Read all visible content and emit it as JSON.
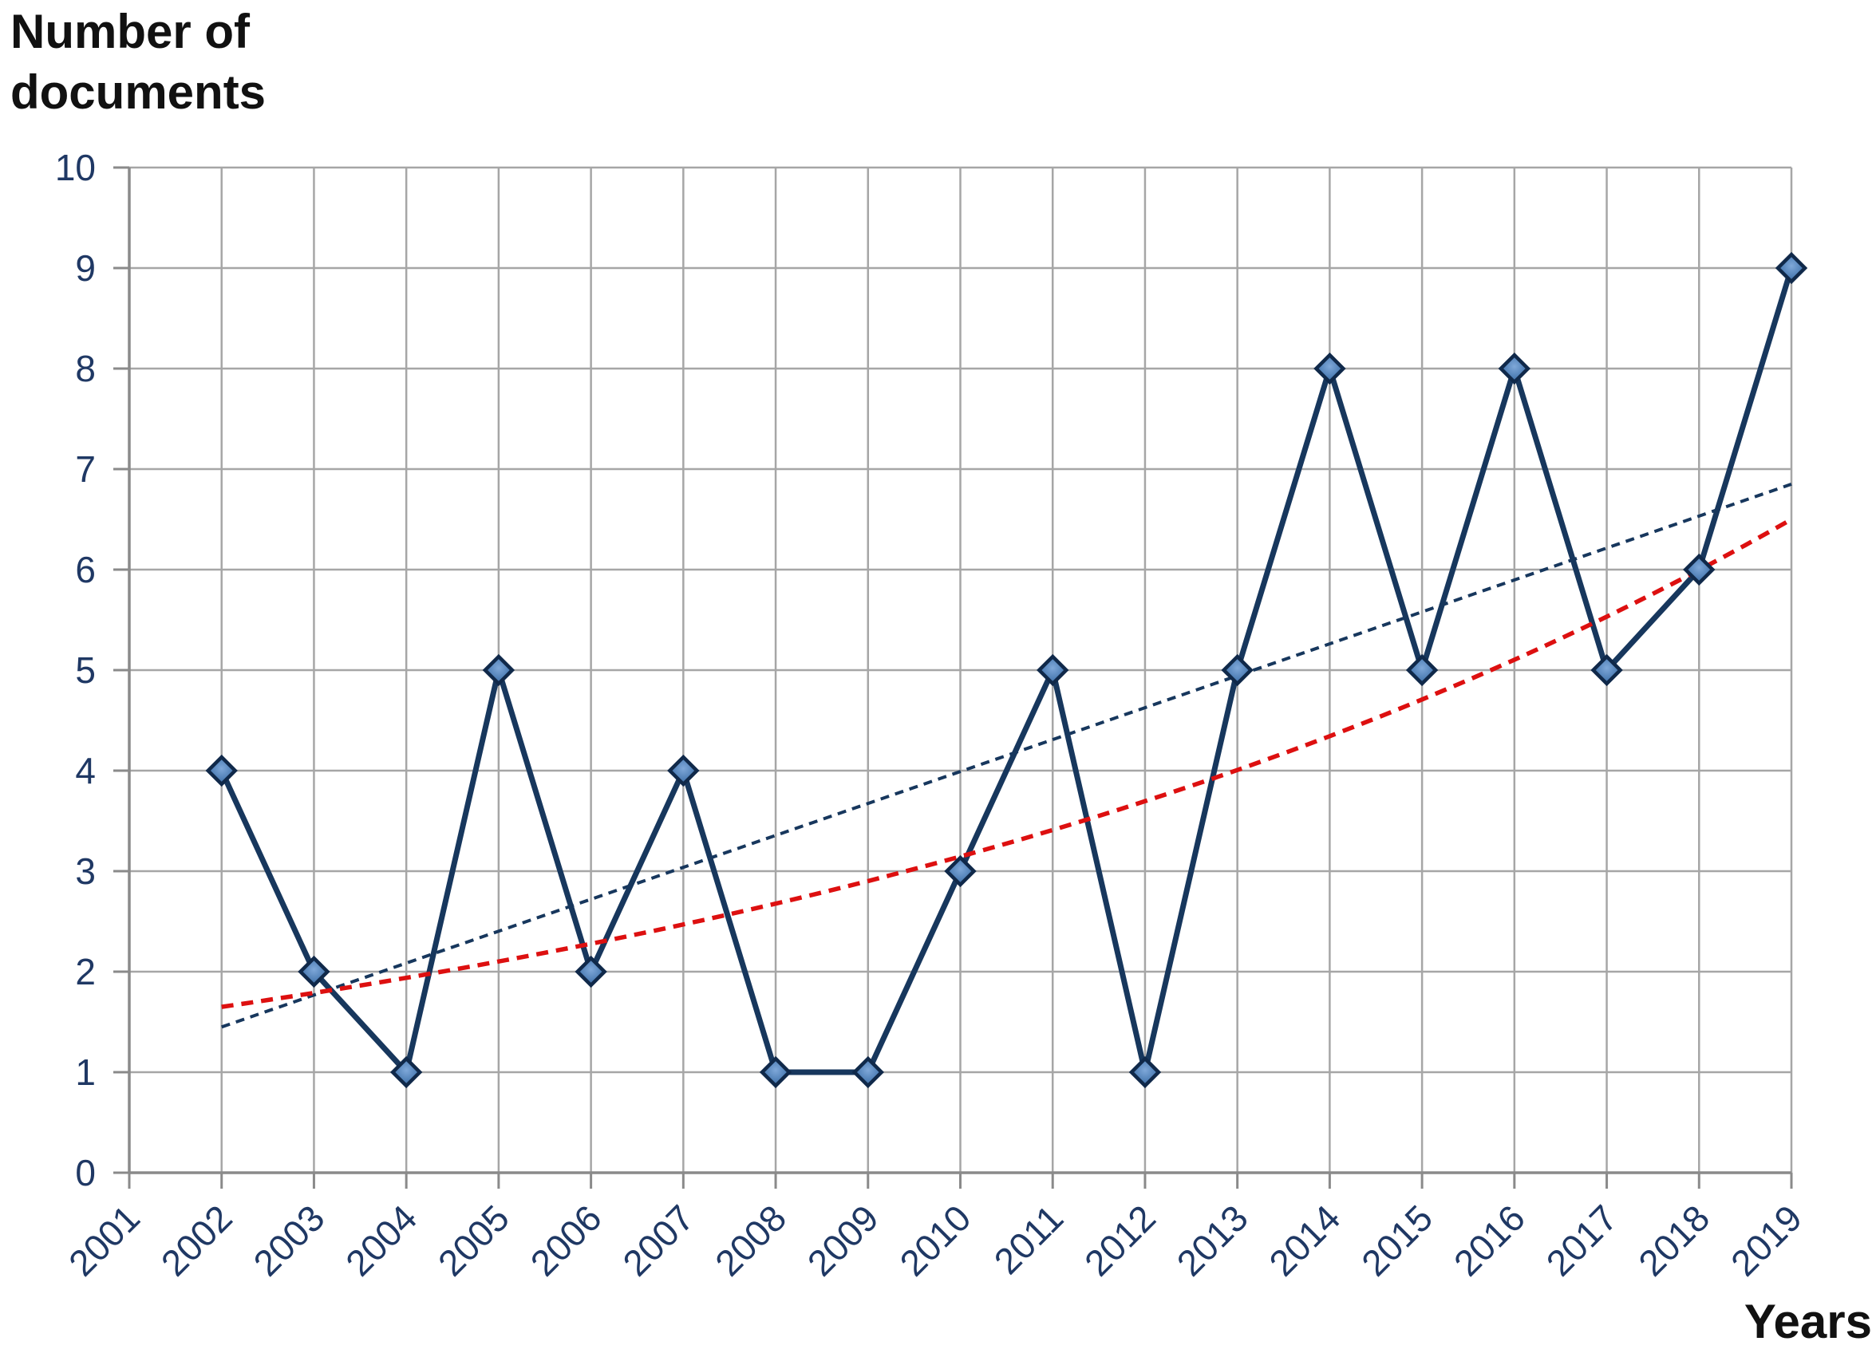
{
  "figure": {
    "y_axis_title": "Number of documents",
    "x_axis_title": "Years"
  },
  "chart_data": {
    "type": "line",
    "title": "",
    "xlabel": "Years",
    "ylabel": "Number of documents",
    "categories": [
      "2001",
      "2002",
      "2003",
      "2004",
      "2005",
      "2006",
      "2007",
      "2008",
      "2009",
      "2010",
      "2011",
      "2012",
      "2013",
      "2014",
      "2015",
      "2016",
      "2017",
      "2018",
      "2019"
    ],
    "y_ticks": [
      "0",
      "1",
      "2",
      "3",
      "4",
      "5",
      "6",
      "7",
      "8",
      "9",
      "10"
    ],
    "ylim": [
      0,
      10
    ],
    "grid": true,
    "legend": "none",
    "series": [
      {
        "name": "documents-per-year",
        "type": "line",
        "marker": "diamond",
        "values": [
          null,
          4,
          2,
          1,
          5,
          2,
          4,
          1,
          1,
          3,
          5,
          1,
          5,
          8,
          5,
          8,
          5,
          6,
          9
        ]
      },
      {
        "name": "linear-trendline",
        "type": "trend",
        "shape": "linear",
        "line_style": "dashed",
        "start": {
          "year": 2002,
          "value": 1.45
        },
        "end": {
          "year": 2019,
          "value": 6.85
        }
      },
      {
        "name": "exponential-trendline",
        "type": "trend",
        "shape": "exponential",
        "line_style": "dashed",
        "start": {
          "year": 2002,
          "value": 1.65
        },
        "end": {
          "year": 2019,
          "value": 6.5
        }
      }
    ],
    "colors": {
      "background": "#ffffff",
      "grid": "#a6a6a6",
      "axis": "#8a8a8a",
      "tick_label": "#1f3864",
      "axis_title": "#111111",
      "series_line": "#17375d",
      "marker_stroke": "#10294a",
      "marker_fill_center": "#7fa8d9",
      "marker_fill_mid": "#4d7db4",
      "marker_fill_edge": "#2c5480",
      "trend_navy": "#17375d",
      "trend_red": "#dd1010"
    }
  }
}
